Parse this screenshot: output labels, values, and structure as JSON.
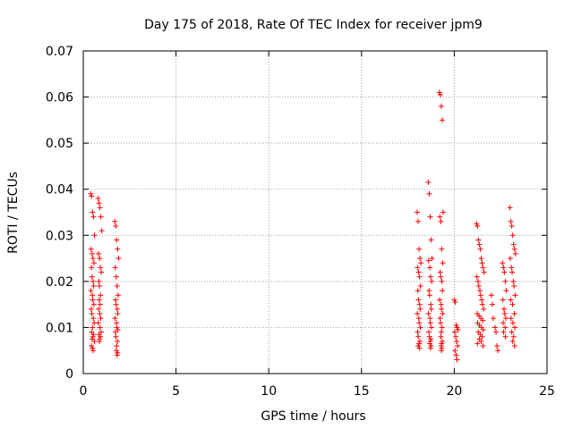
{
  "chart_data": {
    "type": "scatter",
    "title": "Day 175 of 2018, Rate Of TEC Index for receiver jpm9",
    "xlabel": "GPS time / hours",
    "ylabel": "ROTI / TECUs",
    "xlim": [
      0,
      25
    ],
    "ylim": [
      0,
      0.07
    ],
    "x_ticks": [
      0,
      5,
      10,
      15,
      20,
      25
    ],
    "y_ticks": [
      0,
      0.01,
      0.02,
      0.03,
      0.04,
      0.05,
      0.06,
      0.07
    ],
    "x_tick_labels": [
      "0",
      "5",
      "10",
      "15",
      "20",
      "25"
    ],
    "y_tick_labels": [
      "0",
      "0.01",
      "0.02",
      "0.03",
      "0.04",
      "0.05",
      "0.06",
      "0.07"
    ],
    "grid": true,
    "marker": "+",
    "color": "#ff0000",
    "series": [
      {
        "name": "ROTI",
        "x": [
          0.4,
          0.45,
          0.5,
          0.55,
          0.6,
          0.42,
          0.48,
          0.52,
          0.58,
          0.44,
          0.47,
          0.53,
          0.56,
          0.41,
          0.49,
          0.51,
          0.57,
          0.43,
          0.46,
          0.54,
          0.59,
          0.5,
          0.45,
          0.55,
          0.52,
          0.48,
          0.6,
          0.44,
          0.5,
          0.53,
          0.8,
          0.85,
          0.9,
          0.95,
          1.0,
          0.82,
          0.88,
          0.92,
          0.97,
          0.84,
          0.87,
          0.93,
          0.86,
          0.91,
          0.83,
          0.89,
          0.94,
          0.81,
          0.9,
          0.96,
          0.85,
          0.92,
          0.88,
          0.87,
          1.7,
          1.75,
          1.8,
          1.85,
          1.9,
          1.72,
          1.78,
          1.82,
          1.88,
          1.74,
          1.77,
          1.83,
          1.86,
          1.71,
          1.79,
          1.81,
          1.87,
          1.73,
          1.76,
          1.84,
          1.8,
          1.78,
          1.85,
          1.82,
          18.0,
          18.05,
          18.1,
          18.15,
          18.2,
          18.02,
          18.08,
          18.12,
          18.18,
          18.04,
          18.07,
          18.13,
          18.16,
          18.01,
          18.09,
          18.11,
          18.17,
          18.03,
          18.06,
          18.14,
          18.1,
          18.05,
          18.12,
          18.6,
          18.65,
          18.7,
          18.75,
          18.8,
          18.62,
          18.68,
          18.72,
          18.78,
          18.64,
          18.67,
          18.73,
          18.76,
          18.61,
          18.69,
          18.71,
          18.77,
          18.63,
          18.66,
          18.74,
          18.7,
          18.68,
          18.75,
          18.72,
          19.2,
          19.25,
          19.3,
          19.35,
          19.4,
          19.22,
          19.28,
          19.32,
          19.38,
          19.24,
          19.27,
          19.33,
          19.36,
          19.21,
          19.29,
          19.31,
          19.37,
          19.23,
          19.26,
          19.34,
          19.3,
          19.28,
          19.35,
          19.32,
          19.3,
          19.32,
          19.31,
          20.0,
          20.05,
          20.1,
          20.15,
          20.2,
          20.02,
          20.08,
          20.12,
          20.18,
          20.04,
          20.1,
          20.15,
          21.2,
          21.25,
          21.3,
          21.35,
          21.4,
          21.45,
          21.5,
          21.55,
          21.6,
          21.22,
          21.28,
          21.32,
          21.38,
          21.42,
          21.48,
          21.52,
          21.58,
          21.24,
          21.34,
          21.44,
          21.54,
          21.26,
          21.36,
          21.46,
          21.56,
          21.3,
          21.4,
          21.5,
          21.35,
          21.45,
          21.25,
          21.55,
          22.0,
          22.05,
          22.1,
          22.2,
          22.25,
          22.3,
          22.35,
          22.6,
          22.65,
          22.7,
          22.75,
          22.8,
          22.62,
          22.68,
          22.72,
          22.78,
          22.64,
          22.74,
          22.66,
          22.76,
          23.0,
          23.05,
          23.1,
          23.15,
          23.2,
          23.25,
          23.3,
          23.02,
          23.08,
          23.12,
          23.18,
          23.22,
          23.28,
          23.04,
          23.14,
          23.24,
          23.06,
          23.16,
          23.26,
          23.1,
          23.2,
          23.15,
          23.25
        ],
        "y": [
          0.039,
          0.0385,
          0.035,
          0.034,
          0.03,
          0.027,
          0.026,
          0.025,
          0.024,
          0.023,
          0.021,
          0.02,
          0.019,
          0.018,
          0.017,
          0.016,
          0.015,
          0.014,
          0.013,
          0.012,
          0.011,
          0.01,
          0.009,
          0.0085,
          0.008,
          0.0075,
          0.007,
          0.006,
          0.0055,
          0.005,
          0.038,
          0.037,
          0.036,
          0.034,
          0.031,
          0.026,
          0.025,
          0.023,
          0.022,
          0.02,
          0.019,
          0.017,
          0.016,
          0.015,
          0.014,
          0.013,
          0.012,
          0.011,
          0.01,
          0.009,
          0.0085,
          0.008,
          0.0075,
          0.007,
          0.033,
          0.032,
          0.029,
          0.027,
          0.025,
          0.023,
          0.021,
          0.019,
          0.017,
          0.016,
          0.015,
          0.014,
          0.013,
          0.012,
          0.011,
          0.01,
          0.0095,
          0.009,
          0.008,
          0.007,
          0.006,
          0.005,
          0.0045,
          0.004,
          0.035,
          0.033,
          0.027,
          0.025,
          0.024,
          0.023,
          0.022,
          0.021,
          0.019,
          0.018,
          0.016,
          0.015,
          0.014,
          0.013,
          0.012,
          0.011,
          0.01,
          0.009,
          0.008,
          0.007,
          0.0065,
          0.006,
          0.0055,
          0.0415,
          0.039,
          0.034,
          0.029,
          0.025,
          0.0245,
          0.023,
          0.021,
          0.02,
          0.018,
          0.017,
          0.015,
          0.014,
          0.013,
          0.012,
          0.011,
          0.01,
          0.009,
          0.008,
          0.0075,
          0.007,
          0.0065,
          0.006,
          0.0055,
          0.061,
          0.0605,
          0.058,
          0.055,
          0.035,
          0.034,
          0.033,
          0.027,
          0.024,
          0.022,
          0.021,
          0.02,
          0.018,
          0.016,
          0.015,
          0.014,
          0.013,
          0.012,
          0.011,
          0.01,
          0.009,
          0.008,
          0.007,
          0.0065,
          0.006,
          0.0055,
          0.005,
          0.016,
          0.0155,
          0.0105,
          0.01,
          0.0095,
          0.009,
          0.008,
          0.007,
          0.006,
          0.005,
          0.004,
          0.003,
          0.0325,
          0.032,
          0.029,
          0.028,
          0.027,
          0.025,
          0.024,
          0.023,
          0.022,
          0.021,
          0.02,
          0.019,
          0.018,
          0.017,
          0.016,
          0.015,
          0.014,
          0.013,
          0.0125,
          0.012,
          0.0115,
          0.011,
          0.0105,
          0.01,
          0.0095,
          0.009,
          0.0085,
          0.008,
          0.0075,
          0.007,
          0.0065,
          0.006,
          0.017,
          0.015,
          0.012,
          0.01,
          0.009,
          0.006,
          0.005,
          0.024,
          0.023,
          0.022,
          0.02,
          0.018,
          0.016,
          0.014,
          0.013,
          0.012,
          0.011,
          0.01,
          0.009,
          0.008,
          0.036,
          0.033,
          0.032,
          0.03,
          0.028,
          0.027,
          0.026,
          0.025,
          0.023,
          0.022,
          0.02,
          0.019,
          0.017,
          0.016,
          0.015,
          0.013,
          0.012,
          0.011,
          0.01,
          0.009,
          0.008,
          0.007,
          0.006
        ]
      }
    ]
  }
}
